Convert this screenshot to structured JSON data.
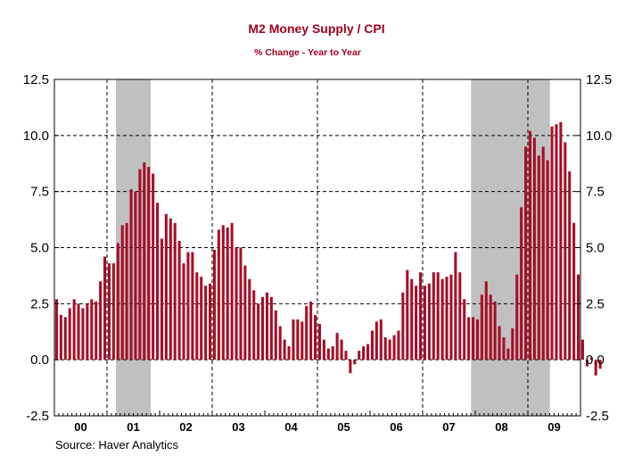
{
  "chart_data": {
    "type": "bar",
    "title": "M2 Money Supply / CPI",
    "subtitle": "% Change - Year to Year",
    "source": "Source: Haver Analytics",
    "ylim": [
      -2.5,
      12.5
    ],
    "yticks": [
      "12.5",
      "10.0",
      "7.5",
      "5.0",
      "2.5",
      "0.0",
      "-2.5"
    ],
    "ytick_values": [
      12.5,
      10.0,
      7.5,
      5.0,
      2.5,
      0.0,
      -2.5
    ],
    "x_start_year": 2000,
    "year_labels": [
      "00",
      "01",
      "02",
      "03",
      "04",
      "05",
      "06",
      "07",
      "08",
      "09"
    ],
    "grid": true,
    "grid_years": [
      2001,
      2003,
      2005,
      2007,
      2009
    ],
    "recessions": [
      [
        2001.17,
        2001.83
      ],
      [
        2007.92,
        2009.42
      ]
    ],
    "shade_color": "#c0c0c0",
    "bar_color": "#a80d25",
    "values": [
      2.7,
      2.0,
      1.9,
      2.3,
      2.7,
      2.5,
      2.3,
      2.5,
      2.7,
      2.6,
      3.5,
      4.6,
      4.3,
      4.3,
      5.2,
      6.0,
      6.1,
      7.6,
      7.5,
      8.5,
      8.8,
      8.6,
      8.3,
      7.0,
      5.4,
      6.5,
      6.3,
      6.1,
      5.3,
      4.3,
      4.8,
      4.8,
      3.9,
      3.7,
      3.3,
      3.4,
      4.9,
      5.8,
      6.0,
      5.9,
      6.1,
      5.0,
      5.0,
      4.2,
      3.6,
      3.1,
      2.5,
      2.8,
      3.0,
      2.8,
      2.2,
      1.5,
      0.9,
      0.6,
      1.8,
      1.8,
      1.7,
      2.4,
      2.6,
      2.0,
      1.6,
      0.9,
      0.5,
      0.6,
      1.2,
      0.9,
      0.4,
      -0.6,
      -0.2,
      0.4,
      0.6,
      0.7,
      1.3,
      1.7,
      1.8,
      1.0,
      0.9,
      1.1,
      1.3,
      3.0,
      4.0,
      3.6,
      3.3,
      3.9,
      3.3,
      3.4,
      3.9,
      3.9,
      3.6,
      3.7,
      3.8,
      4.8,
      3.9,
      2.7,
      1.9,
      1.9,
      1.8,
      2.9,
      3.5,
      2.9,
      2.6,
      1.5,
      1.0,
      0.5,
      1.4,
      3.8,
      6.8,
      9.5,
      10.2,
      9.9,
      9.1,
      9.5,
      8.9,
      10.4,
      10.5,
      10.6,
      9.7,
      8.4,
      6.1,
      3.8,
      0.9,
      -0.3,
      0.1,
      -0.7,
      -0.4
    ]
  }
}
